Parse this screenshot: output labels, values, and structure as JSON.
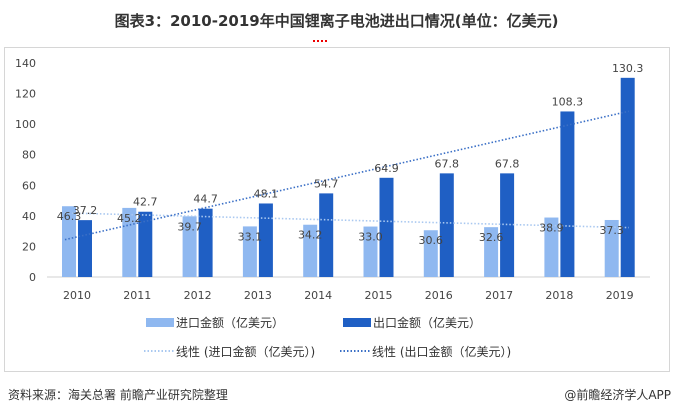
{
  "title": "图表3：2010-2019年中国锂离子电池进出口情况(单位：亿美元)",
  "source": "资料来源：海关总署 前瞻产业研究院整理",
  "brand": "@前瞻经济学人APP",
  "colors": {
    "import": "#8fb8f0",
    "export": "#1f5fc4",
    "import_trend": "#a9c8f0",
    "export_trend": "#3a6fc6"
  },
  "chart_data": {
    "type": "bar",
    "categories": [
      "2010",
      "2011",
      "2012",
      "2013",
      "2014",
      "2015",
      "2016",
      "2017",
      "2018",
      "2019"
    ],
    "series": [
      {
        "name": "进口金额（亿美元）",
        "values": [
          46.3,
          45.2,
          39.7,
          33.1,
          34.2,
          33.0,
          30.6,
          32.6,
          38.9,
          37.3
        ]
      },
      {
        "name": "出口金额（亿美元）",
        "values": [
          37.2,
          42.7,
          44.7,
          48.1,
          54.7,
          64.9,
          67.8,
          67.8,
          108.3,
          130.3
        ]
      }
    ],
    "trendlines": [
      {
        "name": "线性 (进口金额（亿美元）)",
        "of": 0
      },
      {
        "name": "线性 (出口金额（亿美元）)",
        "of": 1
      }
    ],
    "yticks": [
      0,
      20,
      40,
      60,
      80,
      100,
      120,
      140
    ],
    "ylim": [
      0,
      140
    ],
    "grid": false,
    "legend": "bottom"
  }
}
